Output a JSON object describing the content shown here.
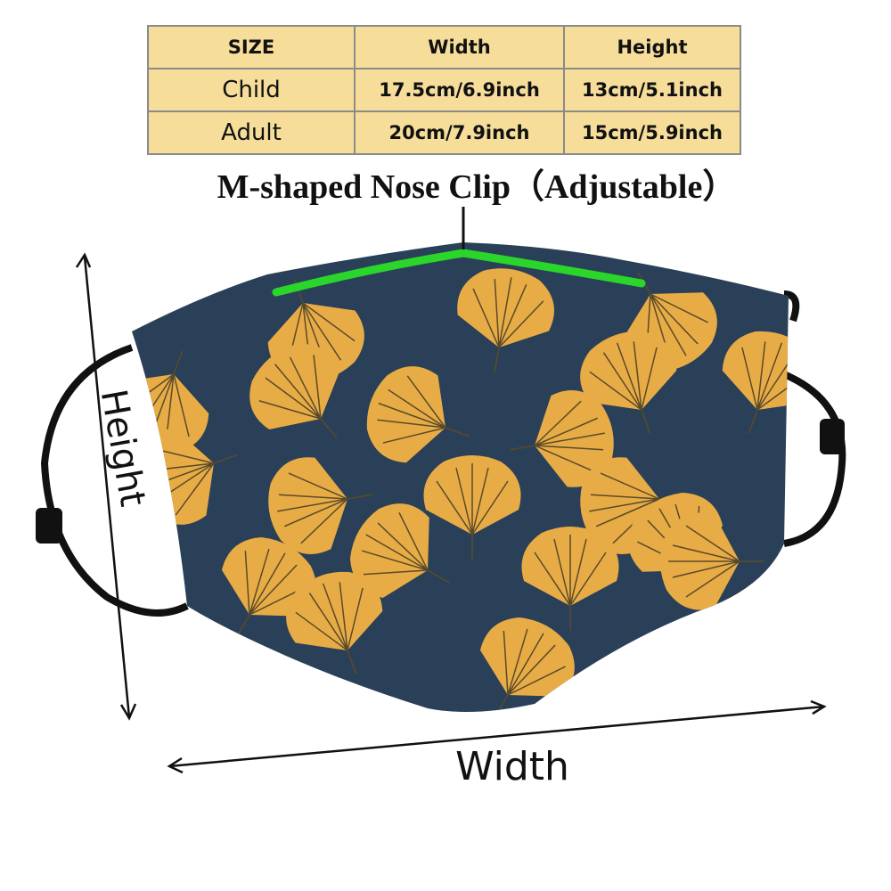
{
  "table": {
    "header": [
      "SIZE",
      "Width",
      "Height"
    ],
    "rows": [
      [
        "Child",
        "17.5cm/6.9inch",
        "13cm/5.1inch"
      ],
      [
        "Adult",
        "20cm/7.9inch",
        "15cm/5.9inch"
      ]
    ]
  },
  "nose_clip_label": "M-shaped Nose Clip（Adjustable）",
  "height_label": "Height",
  "width_label": "Width"
}
